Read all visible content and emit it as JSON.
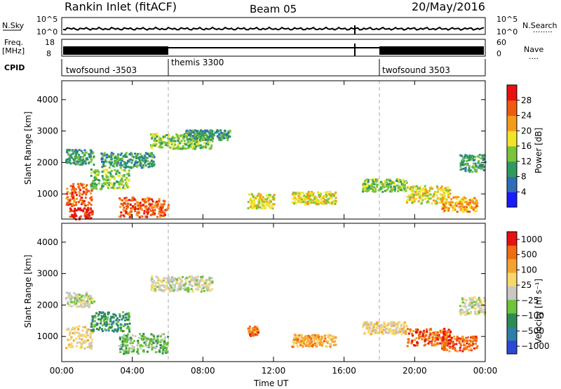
{
  "header": {
    "title": "Rankin Inlet (fitACF)",
    "beam": "Beam 05",
    "date": "20/May/2016"
  },
  "strips": {
    "nsky_label": "N.Sky",
    "nsearch_label": "N.Search",
    "nsearch_dots": "........",
    "freq_label_1": "Freq.",
    "freq_label_2": "[MHz]",
    "nave_label": "Nave",
    "nave_dots": "....",
    "cpid_label": "CPID",
    "noise_ticks": [
      "10^5",
      "10^0"
    ],
    "freq_ticks": [
      "18",
      "8"
    ],
    "nave_ticks": [
      "60",
      "0"
    ]
  },
  "cpid_segments": [
    {
      "label": "twofsound -3503",
      "start_hour": 0,
      "end_hour": 6
    },
    {
      "label": "themis 3300",
      "start_hour": 6,
      "end_hour": 18
    },
    {
      "label": "twofsound 3503",
      "start_hour": 18,
      "end_hour": 24
    }
  ],
  "chart_data": [
    {
      "type": "heatmap",
      "title": "Power",
      "xlabel": "Time UT",
      "ylabel": "Slant Range [km]",
      "xlim": [
        0,
        24
      ],
      "ylim": [
        200,
        4600
      ],
      "x_ticks": [
        "00:00",
        "04:00",
        "08:00",
        "12:00",
        "16:00",
        "20:00",
        "00:00"
      ],
      "y_ticks": [
        "1000",
        "2000",
        "3000",
        "4000"
      ],
      "colorbar": {
        "label": "Power [dB]",
        "ticks": [
          "4",
          "8",
          "12",
          "16",
          "20",
          "24",
          "28"
        ],
        "colors": [
          "#1a1aff",
          "#2f6db8",
          "#2e9a5e",
          "#7ac43a",
          "#f2e428",
          "#f39b1a",
          "#f05a10",
          "#e81010"
        ]
      }
    },
    {
      "type": "heatmap",
      "title": "Velocity",
      "xlabel": "Time UT",
      "ylabel": "Slant Range [km]",
      "xlim": [
        0,
        24
      ],
      "ylim": [
        200,
        4600
      ],
      "x_ticks": [
        "00:00",
        "04:00",
        "08:00",
        "12:00",
        "16:00",
        "20:00",
        "00:00"
      ],
      "y_ticks": [
        "1000",
        "2000",
        "3000",
        "4000"
      ],
      "colorbar": {
        "label": "Velocity [m s⁻¹]",
        "ticks": [
          "1000",
          "500",
          "100",
          "25",
          "−25",
          "−100",
          "−500",
          "−1000"
        ],
        "colors": [
          "#2a4ad6",
          "#2e7fa8",
          "#2e8a55",
          "#6ec43a",
          "#c8c8c4",
          "#f8d66a",
          "#f3a430",
          "#f06c10",
          "#e81010"
        ]
      }
    }
  ]
}
